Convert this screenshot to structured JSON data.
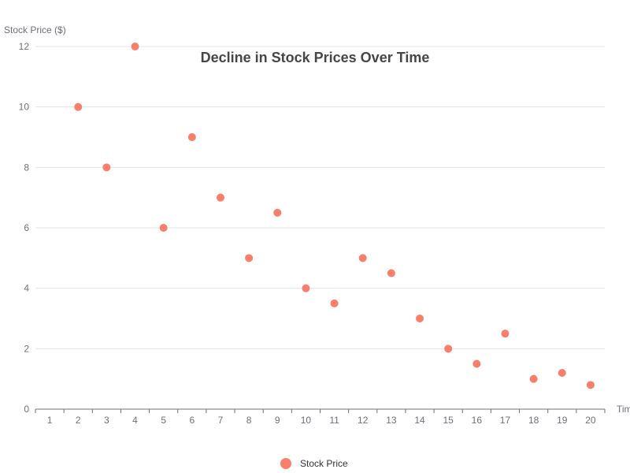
{
  "chart_data": {
    "type": "scatter",
    "title": "Decline in Stock Prices Over Time",
    "xlabel": "Time",
    "ylabel": "Stock Price ($)",
    "x_categories": [
      "1",
      "2",
      "3",
      "4",
      "5",
      "6",
      "7",
      "8",
      "9",
      "10",
      "11",
      "12",
      "13",
      "14",
      "15",
      "16",
      "17",
      "18",
      "19",
      "20"
    ],
    "ylim": [
      0,
      12
    ],
    "y_ticks": [
      "0",
      "2",
      "4",
      "6",
      "8",
      "10",
      "12"
    ],
    "grid": true,
    "legend_position": "bottom-center",
    "series": [
      {
        "name": "Stock Price",
        "color": "#fa7f6a",
        "x": [
          2,
          3,
          4,
          5,
          6,
          7,
          8,
          9,
          10,
          11,
          12,
          13,
          14,
          15,
          16,
          17,
          18,
          19,
          20
        ],
        "y": [
          10,
          8,
          12,
          6,
          9,
          7,
          5,
          6.5,
          4,
          3.5,
          5,
          4.5,
          3,
          2,
          1.5,
          2.5,
          1,
          1.2,
          0.8
        ]
      }
    ]
  }
}
